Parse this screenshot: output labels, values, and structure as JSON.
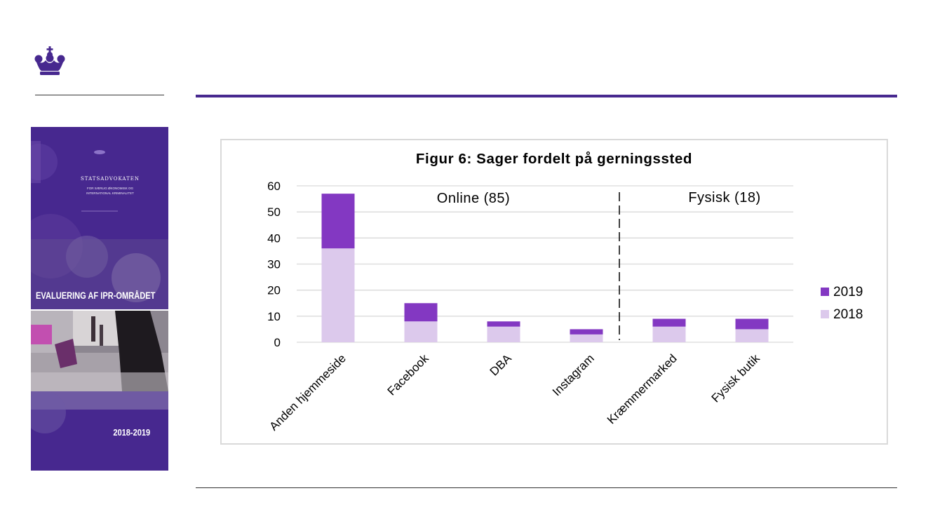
{
  "cover": {
    "org_name": "STATSADVOKATEN",
    "org_sub_1": "FOR SÆRLIG ØKONOMISK OG",
    "org_sub_2": "INTERNATIONAL KRIMINALITET",
    "title": "EVALUERING AF IPR-OMRÅDET",
    "years": "2018-2019"
  },
  "colors": {
    "accent": "#47288f",
    "series_2019": "#8338c2",
    "series_2018": "#dcc9ec"
  },
  "chart_data": {
    "type": "bar",
    "stacked": true,
    "title": "Figur 6: Sager fordelt på gerningssted",
    "categories": [
      "Anden hjemmeside",
      "Facebook",
      "DBA",
      "Instagram",
      "Kræmmermarked",
      "Fysisk butik"
    ],
    "series": [
      {
        "name": "2018",
        "values": [
          36,
          8,
          6,
          3,
          6,
          5
        ]
      },
      {
        "name": "2019",
        "values": [
          21,
          7,
          2,
          2,
          3,
          4
        ]
      }
    ],
    "ylim": [
      0,
      60
    ],
    "yticks": [
      0,
      10,
      20,
      30,
      40,
      50,
      60
    ],
    "grid": true,
    "legend": "right",
    "group_labels": [
      "Online (85)",
      "Fysisk (18)"
    ]
  }
}
